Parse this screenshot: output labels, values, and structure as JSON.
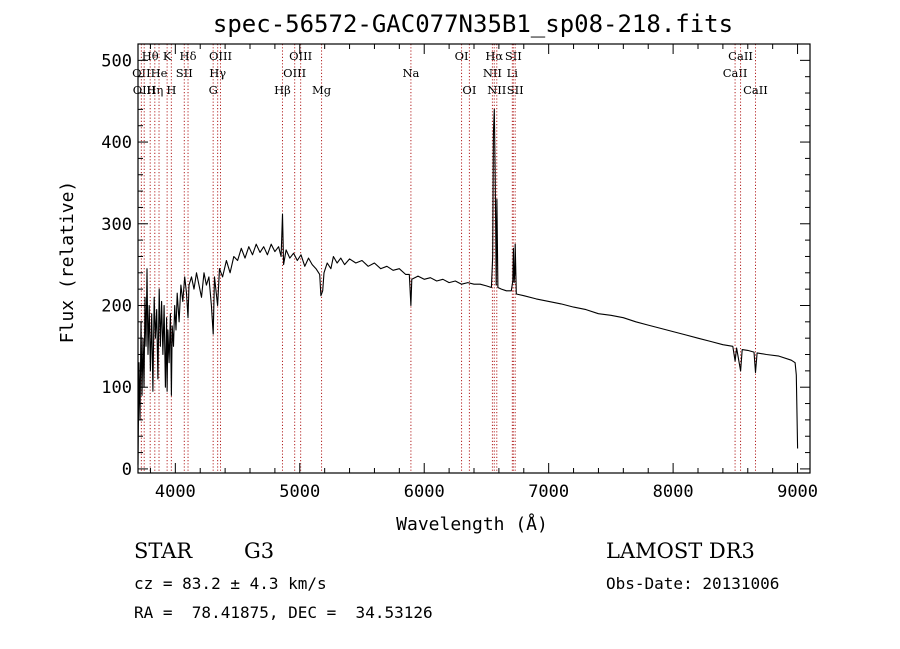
{
  "chart_data": {
    "type": "line",
    "title": "spec-56572-GAC077N35B1_sp08-218.fits",
    "xlabel": "Wavelength (Å)",
    "ylabel": "Flux (relative)",
    "xlim": [
      3700,
      9100
    ],
    "ylim": [
      -5,
      520
    ],
    "xticks": [
      4000,
      5000,
      6000,
      7000,
      8000,
      9000
    ],
    "yticks": [
      0,
      100,
      200,
      300,
      400,
      500
    ],
    "series": [
      {
        "name": "spectrum",
        "points": [
          [
            3700,
            5
          ],
          [
            3708,
            130
          ],
          [
            3716,
            60
          ],
          [
            3724,
            180
          ],
          [
            3732,
            90
          ],
          [
            3740,
            160
          ],
          [
            3748,
            100
          ],
          [
            3756,
            210
          ],
          [
            3764,
            150
          ],
          [
            3772,
            245
          ],
          [
            3780,
            140
          ],
          [
            3790,
            200
          ],
          [
            3800,
            120
          ],
          [
            3810,
            190
          ],
          [
            3820,
            95
          ],
          [
            3830,
            210
          ],
          [
            3840,
            160
          ],
          [
            3850,
            195
          ],
          [
            3860,
            110
          ],
          [
            3870,
            220
          ],
          [
            3880,
            150
          ],
          [
            3890,
            205
          ],
          [
            3900,
            140
          ],
          [
            3910,
            200
          ],
          [
            3920,
            100
          ],
          [
            3930,
            185
          ],
          [
            3934,
            95
          ],
          [
            3940,
            170
          ],
          [
            3950,
            130
          ],
          [
            3960,
            190
          ],
          [
            3968,
            90
          ],
          [
            3975,
            175
          ],
          [
            3985,
            150
          ],
          [
            3995,
            200
          ],
          [
            4005,
            170
          ],
          [
            4015,
            215
          ],
          [
            4030,
            180
          ],
          [
            4045,
            225
          ],
          [
            4060,
            205
          ],
          [
            4075,
            235
          ],
          [
            4090,
            215
          ],
          [
            4102,
            185
          ],
          [
            4110,
            225
          ],
          [
            4130,
            235
          ],
          [
            4150,
            220
          ],
          [
            4170,
            240
          ],
          [
            4190,
            225
          ],
          [
            4210,
            210
          ],
          [
            4230,
            240
          ],
          [
            4250,
            225
          ],
          [
            4270,
            235
          ],
          [
            4290,
            200
          ],
          [
            4304,
            165
          ],
          [
            4315,
            235
          ],
          [
            4340,
            200
          ],
          [
            4355,
            245
          ],
          [
            4380,
            235
          ],
          [
            4410,
            255
          ],
          [
            4440,
            240
          ],
          [
            4470,
            260
          ],
          [
            4500,
            255
          ],
          [
            4530,
            270
          ],
          [
            4560,
            258
          ],
          [
            4590,
            272
          ],
          [
            4620,
            262
          ],
          [
            4650,
            275
          ],
          [
            4680,
            265
          ],
          [
            4710,
            272
          ],
          [
            4740,
            262
          ],
          [
            4770,
            275
          ],
          [
            4800,
            266
          ],
          [
            4830,
            272
          ],
          [
            4850,
            260
          ],
          [
            4861,
            312
          ],
          [
            4870,
            250
          ],
          [
            4890,
            268
          ],
          [
            4920,
            258
          ],
          [
            4950,
            264
          ],
          [
            4980,
            255
          ],
          [
            5010,
            262
          ],
          [
            5040,
            248
          ],
          [
            5070,
            258
          ],
          [
            5100,
            250
          ],
          [
            5130,
            245
          ],
          [
            5160,
            238
          ],
          [
            5170,
            212
          ],
          [
            5184,
            218
          ],
          [
            5195,
            240
          ],
          [
            5220,
            252
          ],
          [
            5250,
            245
          ],
          [
            5270,
            260
          ],
          [
            5300,
            252
          ],
          [
            5330,
            258
          ],
          [
            5360,
            250
          ],
          [
            5400,
            257
          ],
          [
            5450,
            252
          ],
          [
            5500,
            255
          ],
          [
            5550,
            248
          ],
          [
            5600,
            252
          ],
          [
            5650,
            245
          ],
          [
            5700,
            248
          ],
          [
            5750,
            243
          ],
          [
            5800,
            245
          ],
          [
            5850,
            238
          ],
          [
            5880,
            238
          ],
          [
            5893,
            200
          ],
          [
            5900,
            232
          ],
          [
            5950,
            236
          ],
          [
            6000,
            232
          ],
          [
            6050,
            234
          ],
          [
            6100,
            230
          ],
          [
            6150,
            232
          ],
          [
            6200,
            228
          ],
          [
            6250,
            230
          ],
          [
            6300,
            226
          ],
          [
            6350,
            228
          ],
          [
            6400,
            226
          ],
          [
            6450,
            226
          ],
          [
            6500,
            224
          ],
          [
            6540,
            222
          ],
          [
            6550,
            260
          ],
          [
            6556,
            410
          ],
          [
            6563,
            440
          ],
          [
            6570,
            360
          ],
          [
            6578,
            225
          ],
          [
            6584,
            330
          ],
          [
            6592,
            222
          ],
          [
            6620,
            220
          ],
          [
            6660,
            218
          ],
          [
            6700,
            218
          ],
          [
            6712,
            230
          ],
          [
            6717,
            270
          ],
          [
            6722,
            228
          ],
          [
            6728,
            240
          ],
          [
            6731,
            275
          ],
          [
            6740,
            214
          ],
          [
            6800,
            212
          ],
          [
            6900,
            208
          ],
          [
            7000,
            205
          ],
          [
            7100,
            202
          ],
          [
            7200,
            198
          ],
          [
            7300,
            195
          ],
          [
            7400,
            190
          ],
          [
            7500,
            188
          ],
          [
            7600,
            185
          ],
          [
            7700,
            180
          ],
          [
            7800,
            176
          ],
          [
            7900,
            172
          ],
          [
            8000,
            168
          ],
          [
            8100,
            164
          ],
          [
            8200,
            160
          ],
          [
            8300,
            156
          ],
          [
            8400,
            152
          ],
          [
            8480,
            150
          ],
          [
            8498,
            132
          ],
          [
            8510,
            148
          ],
          [
            8542,
            120
          ],
          [
            8555,
            146
          ],
          [
            8600,
            145
          ],
          [
            8650,
            143
          ],
          [
            8662,
            118
          ],
          [
            8675,
            142
          ],
          [
            8750,
            140
          ],
          [
            8850,
            138
          ],
          [
            8950,
            133
          ],
          [
            8980,
            130
          ],
          [
            8990,
            115
          ],
          [
            9000,
            25
          ]
        ]
      }
    ],
    "lines": [
      {
        "wave": 3727,
        "label": "OII",
        "row": 1
      },
      {
        "wave": 3750,
        "label": "OIII",
        "row": 2
      },
      {
        "wave": 3798,
        "label": "Hθ",
        "row": 0
      },
      {
        "wave": 3835,
        "label": "Hη",
        "row": 2
      },
      {
        "wave": 3869,
        "label": "He",
        "row": 1
      },
      {
        "wave": 3934,
        "label": "K",
        "row": 0
      },
      {
        "wave": 3968,
        "label": "H",
        "row": 2
      },
      {
        "wave": 4072,
        "label": "SII",
        "row": 1
      },
      {
        "wave": 4102,
        "label": "Hδ",
        "row": 0
      },
      {
        "wave": 4304,
        "label": "G",
        "row": 2
      },
      {
        "wave": 4340,
        "label": "Hγ",
        "row": 1
      },
      {
        "wave": 4363,
        "label": "OIII",
        "row": 0
      },
      {
        "wave": 4861,
        "label": "Hβ",
        "row": 2
      },
      {
        "wave": 4959,
        "label": "OIII",
        "row": 1
      },
      {
        "wave": 5007,
        "label": "OIII",
        "row": 0
      },
      {
        "wave": 5175,
        "label": "Mg",
        "row": 2
      },
      {
        "wave": 5893,
        "label": "Na",
        "row": 1
      },
      {
        "wave": 6300,
        "label": "OI",
        "row": 0
      },
      {
        "wave": 6363,
        "label": "OI",
        "row": 2
      },
      {
        "wave": 6548,
        "label": "NII",
        "row": 1
      },
      {
        "wave": 6563,
        "label": "Hα",
        "row": 0
      },
      {
        "wave": 6583,
        "label": "NII",
        "row": 2
      },
      {
        "wave": 6708,
        "label": "Li",
        "row": 1
      },
      {
        "wave": 6716,
        "label": "SII",
        "row": 0
      },
      {
        "wave": 6731,
        "label": "SII",
        "row": 2
      },
      {
        "wave": 8498,
        "label": "CaII",
        "row": 1
      },
      {
        "wave": 8542,
        "label": "CaII",
        "row": 0
      },
      {
        "wave": 8662,
        "label": "CaII",
        "row": 2
      }
    ]
  },
  "info": {
    "class_label": "STAR",
    "subclass_label": "G3",
    "survey_label": "LAMOST DR3",
    "redshift_text": "cz = 83.2 ± 4.3 km/s",
    "obsdate_text": "Obs-Date: 20131006",
    "coords_text": "RA =  78.41875, DEC =  34.53126"
  },
  "colors": {
    "line_marker": "#b22222",
    "spectrum": "#000000",
    "axis": "#000000"
  }
}
